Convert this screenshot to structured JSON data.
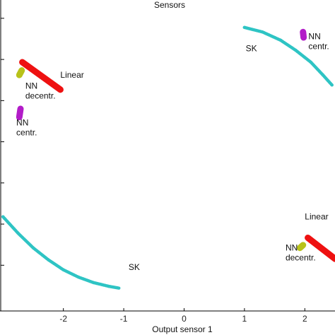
{
  "chart_data": {
    "type": "scatter",
    "title": "Sensors",
    "xlabel": "Output sensor 1",
    "ylabel": "",
    "xlim": [
      -3.05,
      2.5
    ],
    "ylim": [
      -1.75,
      1.65
    ],
    "grid": false,
    "legend": "none",
    "x_ticks": [
      -2,
      -1,
      0,
      1,
      2
    ],
    "x_tick_labels": [
      "-2",
      "-1",
      "0",
      "1",
      "2"
    ],
    "y_ticks": [
      -1.25,
      -0.8,
      -0.35,
      0.1,
      0.55,
      1.0,
      1.45
    ],
    "series": [
      {
        "color": "#2ec4c4",
        "marker": "dot",
        "points": [
          [
            1.0,
            1.35
          ],
          [
            1.3,
            1.3
          ],
          [
            1.6,
            1.21
          ],
          [
            1.85,
            1.1
          ],
          [
            2.1,
            0.97
          ],
          [
            2.3,
            0.83
          ],
          [
            2.45,
            0.72
          ]
        ]
      },
      {
        "color": "#2ec4c4",
        "marker": "dot",
        "points": [
          [
            -3.0,
            -0.72
          ],
          [
            -2.75,
            -0.9
          ],
          [
            -2.5,
            -1.06
          ],
          [
            -2.25,
            -1.19
          ],
          [
            -2.0,
            -1.3
          ],
          [
            -1.75,
            -1.38
          ],
          [
            -1.5,
            -1.44
          ],
          [
            -1.25,
            -1.48
          ],
          [
            -1.08,
            -1.5
          ]
        ]
      },
      {
        "color": "#ee1111",
        "marker": "thick-line",
        "points": [
          [
            -2.68,
            0.97
          ],
          [
            -2.05,
            0.67
          ]
        ]
      },
      {
        "color": "#ee1111",
        "marker": "thick-line",
        "points": [
          [
            2.05,
            -0.95
          ],
          [
            2.5,
            -1.18
          ]
        ]
      },
      {
        "color": "#b8c21a",
        "marker": "blob",
        "points": [
          [
            -2.73,
            0.83
          ],
          [
            -2.69,
            0.88
          ]
        ]
      },
      {
        "color": "#b8c21a",
        "marker": "blob",
        "points": [
          [
            1.92,
            -1.06
          ],
          [
            1.97,
            -1.03
          ]
        ]
      },
      {
        "color": "#b21cc8",
        "marker": "blob",
        "points": [
          [
            -2.73,
            0.37
          ],
          [
            -2.71,
            0.46
          ]
        ]
      },
      {
        "color": "#b21cc8",
        "marker": "blob",
        "points": [
          [
            1.97,
            1.3
          ],
          [
            1.98,
            1.24
          ]
        ]
      }
    ],
    "annotations": [
      {
        "id": "sk-upper",
        "lines": [
          "SK"
        ],
        "x": 1.02,
        "y": 1.09
      },
      {
        "id": "sk-lower",
        "lines": [
          "SK"
        ],
        "x": -0.92,
        "y": -1.3
      },
      {
        "id": "linear-left",
        "lines": [
          "Linear"
        ],
        "x": -2.05,
        "y": 0.8
      },
      {
        "id": "linear-right",
        "lines": [
          "Linear"
        ],
        "x": 2.0,
        "y": -0.75
      },
      {
        "id": "nn-decentr-left",
        "lines": [
          "NN",
          "decentr."
        ],
        "x": -2.63,
        "y": 0.68
      },
      {
        "id": "nn-decentr-right",
        "lines": [
          "NN",
          "decentr."
        ],
        "x": 1.68,
        "y": -1.09
      },
      {
        "id": "nn-centr-left",
        "lines": [
          "NN",
          "centr."
        ],
        "x": -2.78,
        "y": 0.28
      },
      {
        "id": "nn-centr-right",
        "lines": [
          "NN",
          "centr."
        ],
        "x": 2.06,
        "y": 1.22
      }
    ]
  }
}
